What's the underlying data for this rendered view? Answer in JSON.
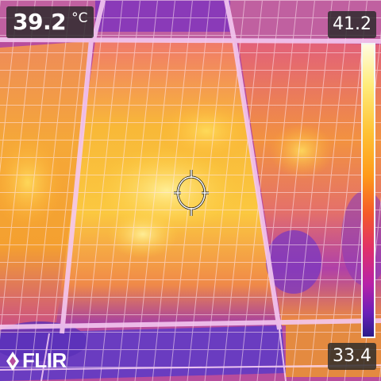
{
  "spot": {
    "value": "39.2",
    "unit": "°C"
  },
  "scale": {
    "max": "41.2",
    "min": "33.4"
  },
  "logo": {
    "text": "FLIR"
  },
  "icons": {
    "logo": "flir-flame-icon",
    "crosshair": "spot-meter-crosshair-icon"
  },
  "colors": {
    "palette": "iron",
    "overlay_bg": "#282828",
    "text": "#ffffff"
  }
}
